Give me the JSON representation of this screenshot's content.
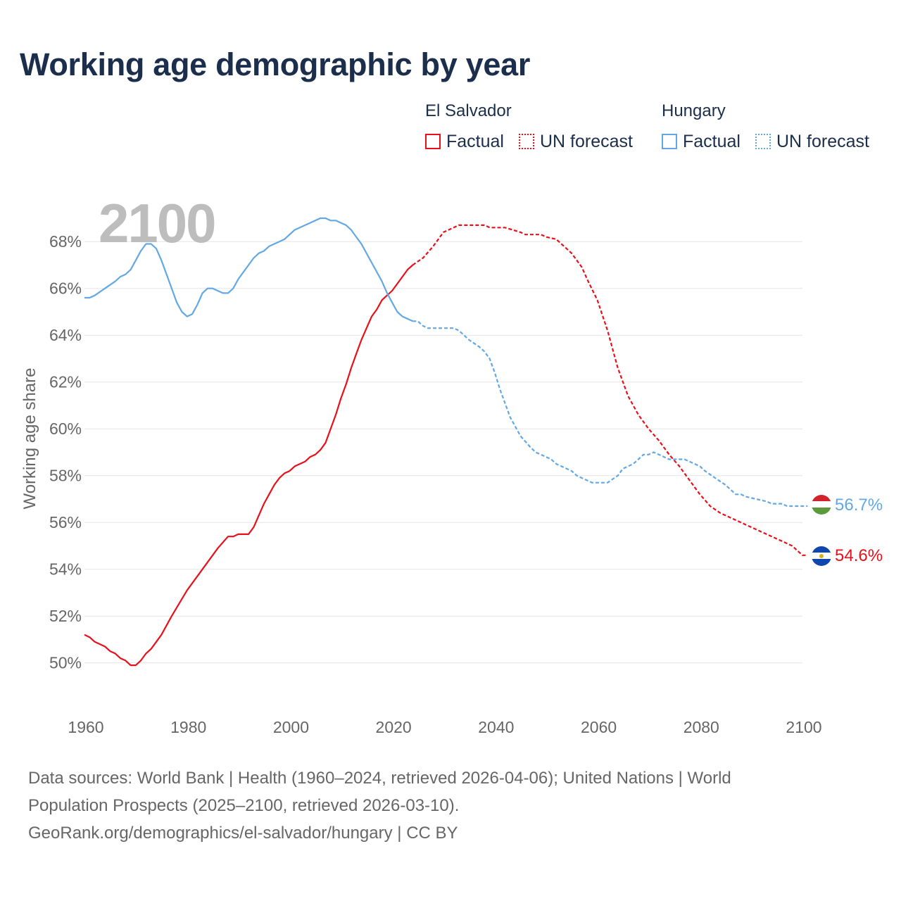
{
  "title": "Working age demographic by year",
  "year_label": "2100",
  "legend": {
    "groups": [
      {
        "name": "El Salvador",
        "factual": "Factual",
        "forecast": "UN forecast"
      },
      {
        "name": "Hungary",
        "factual": "Factual",
        "forecast": "UN forecast"
      }
    ]
  },
  "colors": {
    "el_salvador": "#e8101a",
    "hungary": "#63a8e4",
    "grid": "#e6e6e6",
    "axis_text": "#666666"
  },
  "footer": {
    "line1": "Data sources: World Bank | Health (1960–2024, retrieved 2026-04-06); United Nations | World",
    "line2": "Population Prospects (2025–2100, retrieved 2026-03-10).",
    "line3": "GeoRank.org/demographics/el-salvador/hungary | CC BY"
  },
  "chart_data": {
    "type": "line",
    "title": "Working age demographic by year",
    "xlabel": "",
    "ylabel": "Working age share",
    "xlim": [
      1960,
      2100
    ],
    "ylim": [
      49,
      69.6
    ],
    "x_ticks": [
      1960,
      1980,
      2000,
      2020,
      2040,
      2060,
      2080,
      2100
    ],
    "y_ticks": [
      50,
      52,
      54,
      56,
      58,
      60,
      62,
      64,
      66,
      68
    ],
    "y_tick_labels": [
      "50%",
      "52%",
      "54%",
      "56%",
      "58%",
      "60%",
      "62%",
      "64%",
      "66%",
      "68%"
    ],
    "factual_end_year": 2024,
    "series": [
      {
        "name": "El Salvador",
        "color": "#e8101a",
        "end_label": "54.6%",
        "flag": "el-salvador",
        "points": [
          [
            1960,
            51.2
          ],
          [
            1961,
            51.1
          ],
          [
            1962,
            50.9
          ],
          [
            1964,
            50.7
          ],
          [
            1965,
            50.5
          ],
          [
            1966,
            50.4
          ],
          [
            1967,
            50.2
          ],
          [
            1968,
            50.1
          ],
          [
            1969,
            49.9
          ],
          [
            1970,
            49.9
          ],
          [
            1971,
            50.1
          ],
          [
            1972,
            50.4
          ],
          [
            1973,
            50.6
          ],
          [
            1975,
            51.2
          ],
          [
            1977,
            52.0
          ],
          [
            1980,
            53.1
          ],
          [
            1983,
            54.0
          ],
          [
            1986,
            54.9
          ],
          [
            1988,
            55.4
          ],
          [
            1989,
            55.4
          ],
          [
            1990,
            55.5
          ],
          [
            1992,
            55.5
          ],
          [
            1993,
            55.8
          ],
          [
            1995,
            56.8
          ],
          [
            1997,
            57.6
          ],
          [
            1998,
            57.9
          ],
          [
            1999,
            58.1
          ],
          [
            2000,
            58.2
          ],
          [
            2001,
            58.4
          ],
          [
            2003,
            58.6
          ],
          [
            2004,
            58.8
          ],
          [
            2005,
            58.9
          ],
          [
            2006,
            59.1
          ],
          [
            2007,
            59.4
          ],
          [
            2008,
            60.0
          ],
          [
            2009,
            60.6
          ],
          [
            2010,
            61.3
          ],
          [
            2011,
            61.9
          ],
          [
            2012,
            62.6
          ],
          [
            2013,
            63.2
          ],
          [
            2014,
            63.8
          ],
          [
            2015,
            64.3
          ],
          [
            2016,
            64.8
          ],
          [
            2017,
            65.1
          ],
          [
            2018,
            65.5
          ],
          [
            2020,
            65.9
          ],
          [
            2021,
            66.2
          ],
          [
            2023,
            66.8
          ],
          [
            2024,
            67.0
          ],
          [
            2026,
            67.3
          ],
          [
            2028,
            67.8
          ],
          [
            2030,
            68.4
          ],
          [
            2033,
            68.7
          ],
          [
            2038,
            68.7
          ],
          [
            2039,
            68.6
          ],
          [
            2042,
            68.6
          ],
          [
            2045,
            68.4
          ],
          [
            2046,
            68.3
          ],
          [
            2049,
            68.3
          ],
          [
            2050,
            68.2
          ],
          [
            2052,
            68.1
          ],
          [
            2054,
            67.7
          ],
          [
            2055,
            67.5
          ],
          [
            2057,
            66.9
          ],
          [
            2058,
            66.4
          ],
          [
            2060,
            65.5
          ],
          [
            2062,
            64.2
          ],
          [
            2064,
            62.6
          ],
          [
            2066,
            61.4
          ],
          [
            2068,
            60.6
          ],
          [
            2070,
            60.0
          ],
          [
            2072,
            59.5
          ],
          [
            2074,
            58.9
          ],
          [
            2076,
            58.4
          ],
          [
            2078,
            57.8
          ],
          [
            2080,
            57.2
          ],
          [
            2082,
            56.7
          ],
          [
            2084,
            56.4
          ],
          [
            2087,
            56.1
          ],
          [
            2090,
            55.8
          ],
          [
            2093,
            55.5
          ],
          [
            2096,
            55.2
          ],
          [
            2098,
            55.0
          ],
          [
            2100,
            54.6
          ],
          [
            2101,
            54.6
          ]
        ]
      },
      {
        "name": "Hungary",
        "color": "#63a8e4",
        "end_label": "56.7%",
        "flag": "hungary",
        "points": [
          [
            1960,
            65.6
          ],
          [
            1961,
            65.6
          ],
          [
            1962,
            65.7
          ],
          [
            1964,
            66.0
          ],
          [
            1966,
            66.3
          ],
          [
            1967,
            66.5
          ],
          [
            1968,
            66.6
          ],
          [
            1969,
            66.8
          ],
          [
            1970,
            67.2
          ],
          [
            1971,
            67.6
          ],
          [
            1972,
            67.9
          ],
          [
            1973,
            67.9
          ],
          [
            1974,
            67.7
          ],
          [
            1975,
            67.2
          ],
          [
            1976,
            66.6
          ],
          [
            1977,
            66.0
          ],
          [
            1978,
            65.4
          ],
          [
            1979,
            65.0
          ],
          [
            1980,
            64.8
          ],
          [
            1981,
            64.9
          ],
          [
            1982,
            65.3
          ],
          [
            1983,
            65.8
          ],
          [
            1984,
            66.0
          ],
          [
            1985,
            66.0
          ],
          [
            1987,
            65.8
          ],
          [
            1988,
            65.8
          ],
          [
            1989,
            66.0
          ],
          [
            1990,
            66.4
          ],
          [
            1992,
            67.0
          ],
          [
            1993,
            67.3
          ],
          [
            1994,
            67.5
          ],
          [
            1995,
            67.6
          ],
          [
            1996,
            67.8
          ],
          [
            1998,
            68.0
          ],
          [
            1999,
            68.1
          ],
          [
            2000,
            68.3
          ],
          [
            2001,
            68.5
          ],
          [
            2002,
            68.6
          ],
          [
            2004,
            68.8
          ],
          [
            2006,
            69.0
          ],
          [
            2007,
            69.0
          ],
          [
            2008,
            68.9
          ],
          [
            2009,
            68.9
          ],
          [
            2010,
            68.8
          ],
          [
            2011,
            68.7
          ],
          [
            2012,
            68.5
          ],
          [
            2013,
            68.2
          ],
          [
            2014,
            67.9
          ],
          [
            2015,
            67.5
          ],
          [
            2016,
            67.1
          ],
          [
            2017,
            66.7
          ],
          [
            2018,
            66.3
          ],
          [
            2019,
            65.8
          ],
          [
            2020,
            65.4
          ],
          [
            2021,
            65.0
          ],
          [
            2022,
            64.8
          ],
          [
            2023,
            64.7
          ],
          [
            2024,
            64.6
          ],
          [
            2025,
            64.6
          ],
          [
            2026,
            64.4
          ],
          [
            2027,
            64.3
          ],
          [
            2030,
            64.3
          ],
          [
            2032,
            64.3
          ],
          [
            2033,
            64.2
          ],
          [
            2035,
            63.8
          ],
          [
            2037,
            63.5
          ],
          [
            2038,
            63.3
          ],
          [
            2039,
            63.0
          ],
          [
            2040,
            62.4
          ],
          [
            2041,
            61.7
          ],
          [
            2042,
            61.1
          ],
          [
            2043,
            60.5
          ],
          [
            2045,
            59.7
          ],
          [
            2047,
            59.2
          ],
          [
            2048,
            59.0
          ],
          [
            2049,
            58.9
          ],
          [
            2050,
            58.8
          ],
          [
            2051,
            58.7
          ],
          [
            2052,
            58.5
          ],
          [
            2053,
            58.4
          ],
          [
            2054,
            58.3
          ],
          [
            2055,
            58.2
          ],
          [
            2056,
            58.0
          ],
          [
            2057,
            57.9
          ],
          [
            2058,
            57.8
          ],
          [
            2059,
            57.7
          ],
          [
            2062,
            57.7
          ],
          [
            2064,
            58.0
          ],
          [
            2065,
            58.3
          ],
          [
            2067,
            58.5
          ],
          [
            2068,
            58.7
          ],
          [
            2069,
            58.9
          ],
          [
            2070,
            58.9
          ],
          [
            2071,
            59.0
          ],
          [
            2072,
            58.9
          ],
          [
            2073,
            58.8
          ],
          [
            2074,
            58.7
          ],
          [
            2077,
            58.7
          ],
          [
            2078,
            58.6
          ],
          [
            2080,
            58.4
          ],
          [
            2081,
            58.2
          ],
          [
            2083,
            57.9
          ],
          [
            2085,
            57.6
          ],
          [
            2087,
            57.2
          ],
          [
            2088,
            57.2
          ],
          [
            2089,
            57.1
          ],
          [
            2091,
            57.0
          ],
          [
            2093,
            56.9
          ],
          [
            2094,
            56.8
          ],
          [
            2096,
            56.8
          ],
          [
            2097,
            56.7
          ],
          [
            2101,
            56.7
          ]
        ]
      }
    ]
  }
}
